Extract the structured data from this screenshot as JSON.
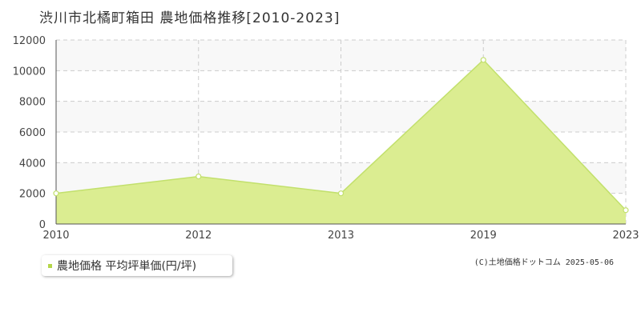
{
  "title": "渋川市北橘町箱田 農地価格推移[2010-2023]",
  "credit": "(C)土地価格ドットコム 2025-05-06",
  "legend_label": "農地価格 平均坪単価(円/坪)",
  "colors": {
    "fill": "#dbed91",
    "line": "#c2e06c",
    "plot_band": "#f8f8f8",
    "grid": "#cccccc",
    "axis": "#555555",
    "legend_marker": "#b5d64a"
  },
  "chart_data": {
    "type": "area",
    "title": "渋川市北橘町箱田 農地価格推移[2010-2023]",
    "categories": [
      "2010",
      "2012",
      "2013",
      "2019",
      "2023"
    ],
    "series": [
      {
        "name": "農地価格 平均坪単価(円/坪)",
        "values": [
          2000,
          3100,
          2000,
          10700,
          900
        ]
      }
    ],
    "ylim": [
      0,
      12000
    ],
    "yticks": [
      0,
      2000,
      4000,
      6000,
      8000,
      10000,
      12000
    ],
    "grid": true,
    "legend": "bottom-left"
  }
}
